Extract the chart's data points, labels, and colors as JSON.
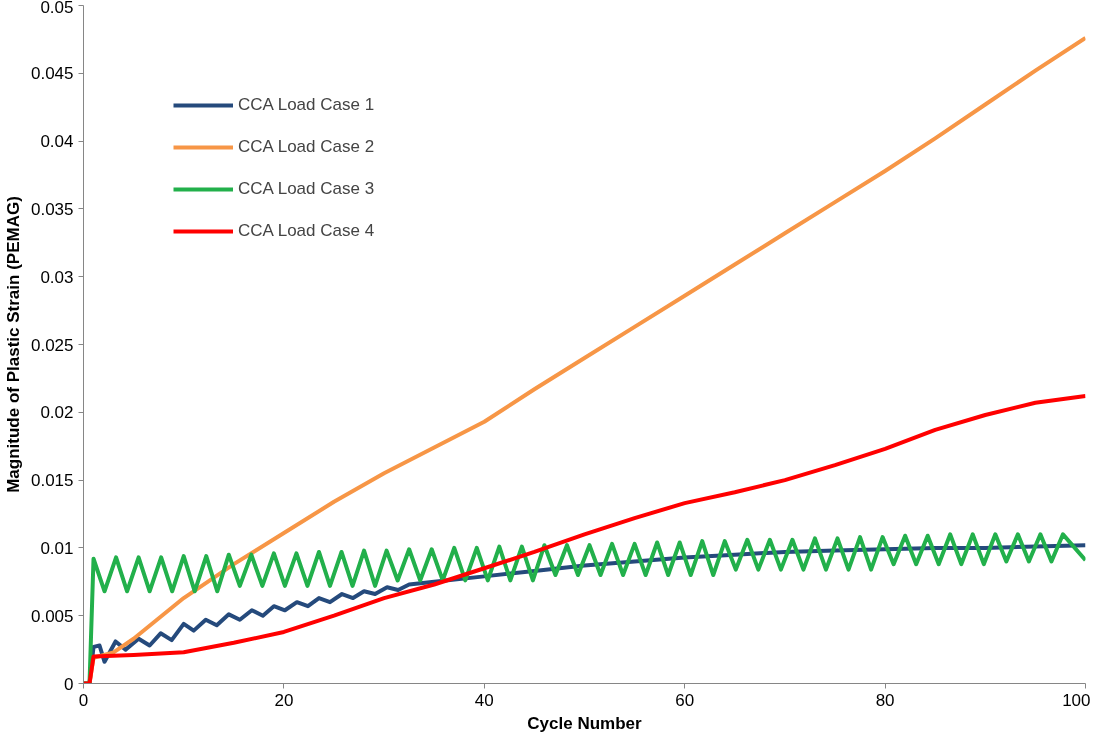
{
  "chart_data": {
    "type": "line",
    "xlabel": "Cycle Number",
    "ylabel": "Magnitude of Plastic Strain (PEMAG)",
    "xlim": [
      0,
      100
    ],
    "ylim": [
      0,
      0.05
    ],
    "xticks": [
      0,
      20,
      40,
      60,
      80,
      100
    ],
    "yticks": [
      0,
      0.005,
      0.01,
      0.015,
      0.02,
      0.025,
      0.03,
      0.035,
      0.04,
      0.045,
      0.05
    ],
    "grid": false,
    "legend": "top left",
    "series": [
      {
        "name": "CCA Load Case 1",
        "color": "#254a7c",
        "x": [
          0,
          0.6,
          1,
          1.6,
          2.1,
          3.2,
          4.2,
          5.5,
          6.6,
          7.7,
          8.8,
          10,
          11,
          12.2,
          13.3,
          14.5,
          15.6,
          16.8,
          17.9,
          19,
          20.1,
          21.3,
          22.4,
          23.5,
          24.6,
          25.8,
          26.9,
          28,
          29.1,
          30.3,
          31.4,
          32.5,
          35,
          40,
          45,
          50,
          55,
          60,
          65,
          70,
          75,
          80,
          85,
          90,
          95,
          100
        ],
        "values": [
          0,
          0,
          0.0027,
          0.0028,
          0.0016,
          0.0031,
          0.0025,
          0.0033,
          0.0028,
          0.0037,
          0.0032,
          0.0044,
          0.0039,
          0.0047,
          0.0043,
          0.0051,
          0.0047,
          0.0054,
          0.005,
          0.0057,
          0.0054,
          0.006,
          0.0057,
          0.0063,
          0.006,
          0.0066,
          0.0063,
          0.0068,
          0.0066,
          0.0071,
          0.0069,
          0.0073,
          0.0075,
          0.0079,
          0.0083,
          0.0087,
          0.009,
          0.0093,
          0.0095,
          0.0097,
          0.0098,
          0.0099,
          0.01,
          0.01,
          0.0101,
          0.0102
        ]
      },
      {
        "name": "CCA Load Case 2",
        "color": "#f79646",
        "x": [
          0,
          0.6,
          1,
          3,
          5,
          10,
          15,
          20,
          25,
          30,
          35,
          40,
          45,
          50,
          55,
          60,
          65,
          70,
          75,
          80,
          85,
          90,
          95,
          100
        ],
        "values": [
          0,
          0,
          0.0019,
          0.0023,
          0.0033,
          0.0063,
          0.0088,
          0.0111,
          0.0134,
          0.0155,
          0.0174,
          0.0193,
          0.0217,
          0.024,
          0.0263,
          0.0286,
          0.0309,
          0.0332,
          0.0355,
          0.0378,
          0.0402,
          0.0427,
          0.0452,
          0.0476
        ]
      },
      {
        "name": "CCA Load Case 3",
        "color": "#22b04b",
        "x": [
          0,
          0.6,
          1,
          2.1,
          3.25,
          4.35,
          5.5,
          6.6,
          7.75,
          8.85,
          10,
          11.1,
          12.25,
          13.35,
          14.5,
          15.6,
          16.75,
          17.85,
          19,
          20.1,
          21.25,
          22.35,
          23.5,
          24.6,
          25.75,
          26.85,
          28,
          29.1,
          30.25,
          31.35,
          32.5,
          33.6,
          34.75,
          35.85,
          37,
          38.1,
          39.25,
          40.35,
          41.5,
          42.6,
          43.75,
          44.85,
          46,
          47.1,
          48.25,
          49.35,
          50.5,
          51.6,
          52.75,
          53.85,
          55,
          56.1,
          57.25,
          58.35,
          59.5,
          60.6,
          61.75,
          62.85,
          64,
          65.1,
          66.25,
          67.35,
          68.5,
          69.6,
          70.75,
          71.85,
          73,
          74.1,
          75.25,
          76.35,
          77.5,
          78.6,
          79.75,
          80.85,
          82,
          83.1,
          84.25,
          85.35,
          86.5,
          87.6,
          88.75,
          89.85,
          91,
          92.1,
          93.25,
          94.35,
          95.5,
          96.6,
          97.75,
          100
        ],
        "values": [
          0,
          0,
          0.0092,
          0.0068,
          0.0093,
          0.0068,
          0.0093,
          0.0068,
          0.0093,
          0.0068,
          0.0094,
          0.0068,
          0.0094,
          0.0068,
          0.0095,
          0.0072,
          0.0095,
          0.0072,
          0.0096,
          0.0072,
          0.0096,
          0.0072,
          0.0097,
          0.0072,
          0.0097,
          0.0072,
          0.0098,
          0.0072,
          0.0098,
          0.0076,
          0.0099,
          0.0076,
          0.0099,
          0.0076,
          0.01,
          0.0076,
          0.01,
          0.0076,
          0.0101,
          0.0076,
          0.0101,
          0.0076,
          0.0102,
          0.008,
          0.0102,
          0.008,
          0.0102,
          0.008,
          0.0103,
          0.008,
          0.0103,
          0.008,
          0.0104,
          0.008,
          0.0104,
          0.008,
          0.0105,
          0.008,
          0.0105,
          0.0084,
          0.0106,
          0.0084,
          0.0106,
          0.0084,
          0.0106,
          0.0084,
          0.0107,
          0.0084,
          0.0107,
          0.0084,
          0.0108,
          0.0084,
          0.0108,
          0.0088,
          0.0109,
          0.0088,
          0.0109,
          0.0088,
          0.011,
          0.0088,
          0.011,
          0.0088,
          0.011,
          0.009,
          0.011,
          0.009,
          0.011,
          0.009,
          0.011,
          0.0091
        ]
      },
      {
        "name": "CCA Load Case 4",
        "color": "#ff0000",
        "x": [
          0,
          0.6,
          1,
          5,
          10,
          15,
          20,
          25,
          30,
          35,
          40,
          45,
          50,
          55,
          60,
          65,
          70,
          75,
          80,
          85,
          90,
          95,
          100
        ],
        "values": [
          0,
          0,
          0.002,
          0.0021,
          0.0023,
          0.003,
          0.0038,
          0.005,
          0.0063,
          0.0073,
          0.0085,
          0.0097,
          0.011,
          0.0122,
          0.0133,
          0.0141,
          0.015,
          0.0161,
          0.0173,
          0.0187,
          0.0198,
          0.0207,
          0.0212
        ]
      }
    ]
  }
}
